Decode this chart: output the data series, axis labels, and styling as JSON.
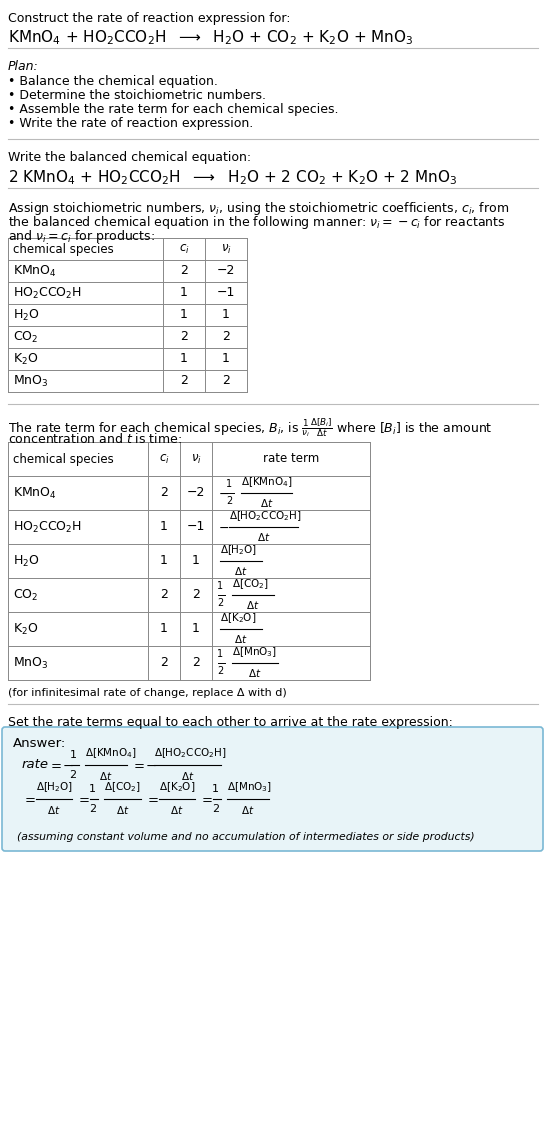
{
  "bg_color": "#ffffff",
  "text_color": "#000000",
  "title_text": "Construct the rate of reaction expression for:",
  "plan_items": [
    "• Balance the chemical equation.",
    "• Determine the stoichiometric numbers.",
    "• Assemble the rate term for each chemical species.",
    "• Write the rate of reaction expression."
  ],
  "table1_species": [
    "KMnO₄",
    "HO₂CCO₂H",
    "H₂O",
    "CO₂",
    "K₂O",
    "MnO₃"
  ],
  "table1_ci": [
    "2",
    "1",
    "1",
    "2",
    "1",
    "2"
  ],
  "table1_ni": [
    "−2",
    "−1",
    "1",
    "2",
    "1",
    "2"
  ],
  "table2_species": [
    "KMnO₄",
    "HO₂CCO₂H",
    "H₂O",
    "CO₂",
    "K₂O",
    "MnO₃"
  ],
  "table2_ci": [
    "2",
    "1",
    "1",
    "2",
    "1",
    "2"
  ],
  "table2_ni": [
    "−2",
    "−1",
    "1",
    "2",
    "1",
    "2"
  ],
  "infinitesimal_note": "(for infinitesimal rate of change, replace Δ with d)",
  "section5_intro": "Set the rate terms equal to each other to arrive at the rate expression:",
  "answer_box_color": "#e8f4f8",
  "answer_border_color": "#7ab8d4",
  "answer_note": "(assuming constant volume and no accumulation of intermediates or side products)"
}
